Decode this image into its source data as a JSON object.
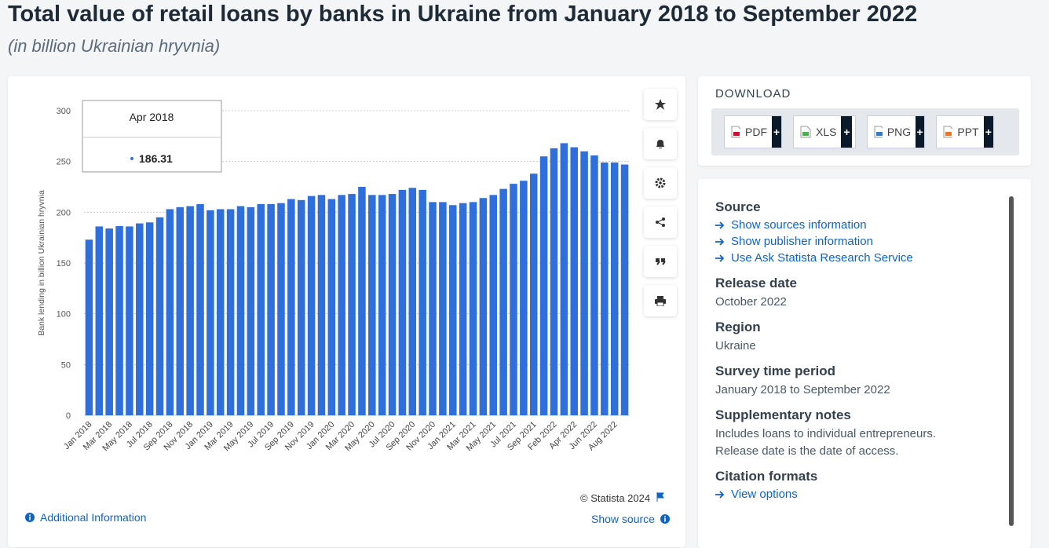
{
  "header": {
    "title": "Total value of retail loans by banks in Ukraine from January 2018 to September 2022",
    "subtitle": "(in billion Ukrainian hryvnia)"
  },
  "chart_data": {
    "type": "bar",
    "y_axis_label": "Bank lending in billion Ukrainian hryvnia",
    "categories": [
      "Jan 2018",
      null,
      "Mar 2018",
      null,
      "May 2018",
      null,
      "Jul 2018",
      null,
      "Sep 2018",
      null,
      "Nov 2018",
      null,
      "Jan 2019",
      null,
      "Mar 2019",
      null,
      "May 2019",
      null,
      "Jul 2019",
      null,
      "Sep 2019",
      null,
      "Nov 2019",
      null,
      "Jan 2020",
      null,
      "Mar 2020",
      null,
      "May 2020",
      null,
      "Jul 2020",
      null,
      "Sep 2020",
      null,
      "Nov 2020",
      null,
      "Jan 2021",
      null,
      "Mar 2021",
      null,
      "May 2021",
      null,
      "Jul 2021",
      null,
      "Sep 2021",
      null,
      "Feb 2022",
      null,
      "Apr 2022",
      null,
      "Jun 2022",
      null,
      "Aug 2022",
      null
    ],
    "values": [
      173,
      186,
      184,
      186.31,
      186,
      189,
      190,
      195,
      203,
      205,
      206,
      208,
      202,
      203,
      203,
      206,
      205,
      208,
      208,
      209,
      213,
      212,
      216,
      217,
      213,
      217,
      218,
      225,
      217,
      217,
      218,
      222,
      224,
      222,
      210,
      210,
      207,
      209,
      210,
      214,
      217,
      223,
      228,
      231,
      238,
      255,
      263,
      268,
      264,
      260,
      256,
      249,
      249,
      247
    ],
    "color": "#2f6fdc",
    "ylim": [
      0,
      300
    ],
    "yticks": [
      0,
      50,
      100,
      150,
      200,
      250,
      300
    ],
    "grid": true,
    "tooltip": {
      "label": "Apr 2018",
      "index": 3
    }
  },
  "footer": {
    "copyright": "© Statista 2024",
    "additional": "Additional Information",
    "show_source": "Show source"
  },
  "download": {
    "heading": "DOWNLOAD",
    "buttons": [
      {
        "label": "PDF",
        "action": "+"
      },
      {
        "label": "XLS",
        "action": "+"
      },
      {
        "label": "PNG",
        "action": "+"
      },
      {
        "label": "PPT",
        "action": "+"
      }
    ]
  },
  "details": {
    "source": {
      "heading": "Source",
      "links": [
        "Show sources information",
        "Show publisher information",
        "Use Ask Statista Research Service"
      ]
    },
    "sections": [
      {
        "heading": "Release date",
        "lines": [
          "October 2022"
        ]
      },
      {
        "heading": "Region",
        "lines": [
          "Ukraine"
        ]
      },
      {
        "heading": "Survey time period",
        "lines": [
          "January 2018 to September 2022"
        ]
      },
      {
        "heading": "Supplementary notes",
        "lines": [
          "Includes loans to individual entrepreneurs.",
          "Release date is the date of access."
        ]
      }
    ],
    "citation": {
      "heading": "Citation formats",
      "link": "View options"
    }
  }
}
